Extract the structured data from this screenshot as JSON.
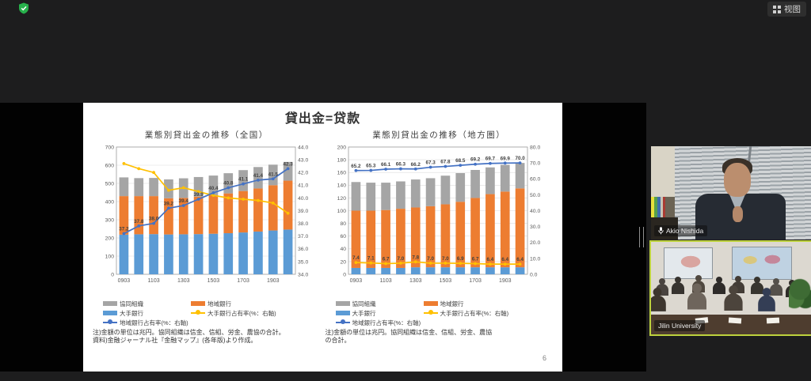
{
  "app": {
    "topbar": {
      "view_label": "视图"
    },
    "icons": {
      "security": "shield-check-icon",
      "view": "grid-icon",
      "mic": "microphone-icon",
      "resize": "panel-resize-handle"
    },
    "colors": {
      "active_speaker_border": "#bdd23d",
      "shield_green": "#27b04b",
      "share_background": "#000000",
      "slide_background": "#ffffff"
    }
  },
  "slide": {
    "title": "貸出金=贷款",
    "page_number": "6"
  },
  "participants": [
    {
      "name": "Akio Nishida"
    },
    {
      "name": "Jilin University"
    }
  ],
  "chart_data": [
    {
      "type": "bar",
      "subtype": "stacked-bars-with-share-lines",
      "title": "業態別貸出金の推移（全国）",
      "categories": [
        "0903",
        "1003",
        "1103",
        "1203",
        "1303",
        "1403",
        "1503",
        "1603",
        "1703",
        "1803",
        "1903",
        "2003"
      ],
      "x_tick_labels_shown": [
        "0903",
        "1103",
        "1303",
        "1503",
        "1703",
        "1903"
      ],
      "left_axis": {
        "min": 0,
        "max": 700,
        "step": 100
      },
      "right_axis": {
        "min": 34,
        "max": 44,
        "step": 1
      },
      "bar_series": [
        {
          "name": "大手銀行",
          "color": "#5b9bd5",
          "values": [
            218,
            220,
            221,
            219,
            220,
            221,
            223,
            226,
            230,
            235,
            241,
            246
          ]
        },
        {
          "name": "地域銀行",
          "color": "#ed7d31",
          "values": [
            212,
            210,
            209,
            199,
            200,
            206,
            212,
            219,
            228,
            237,
            249,
            269
          ]
        },
        {
          "name": "協同組織",
          "color": "#a5a5a5",
          "values": [
            103,
            99,
            100,
            104,
            108,
            108,
            108,
            111,
            115,
            118,
            113,
            103
          ]
        }
      ],
      "line_series": [
        {
          "name": "大手銀行占有率(%：右軸)",
          "color": "#ffc000",
          "axis": "right",
          "values": [
            42.7,
            42.3,
            42.0,
            40.6,
            40.8,
            40.5,
            40.2,
            40.0,
            39.9,
            39.8,
            39.6,
            38.8
          ]
        },
        {
          "name": "地域銀行占有率(%：右軸)",
          "color": "#4472c4",
          "axis": "right",
          "values": [
            37.2,
            37.8,
            38.0,
            39.2,
            39.4,
            39.9,
            40.4,
            40.8,
            41.1,
            41.4,
            41.5,
            42.3
          ],
          "point_labels": [
            "37.2",
            "37.8",
            "38.0",
            "39.2",
            "39.4",
            "39.9",
            "40.4",
            "40.8",
            "41.1",
            "41.4",
            "41.5",
            "42.3"
          ]
        }
      ],
      "legend_items": [
        {
          "label": "協同組織",
          "swatch": "bar",
          "color": "#a5a5a5"
        },
        {
          "label": "地域銀行",
          "swatch": "bar",
          "color": "#ed7d31"
        },
        {
          "label": "大手銀行",
          "swatch": "bar",
          "color": "#5b9bd5"
        },
        {
          "label": "大手銀行占有率(%：右軸)",
          "swatch": "line",
          "color": "#ffc000"
        },
        {
          "label": "地域銀行占有率(%：右軸)",
          "swatch": "line",
          "color": "#4472c4"
        }
      ],
      "note": "注)金額の単位は兆円。協同組織は信金、信組、労金、農協の合計。\n資料)金融ジャーナル社『金融マップ』(各年版)より作成。"
    },
    {
      "type": "bar",
      "subtype": "stacked-bars-with-share-lines",
      "title": "業態別貸出金の推移（地方圏）",
      "categories": [
        "0903",
        "1003",
        "1103",
        "1203",
        "1303",
        "1403",
        "1503",
        "1603",
        "1703",
        "1803",
        "1903",
        "2003"
      ],
      "x_tick_labels_shown": [
        "0903",
        "1103",
        "1303",
        "1503",
        "1703",
        "1903"
      ],
      "left_axis": {
        "min": 0,
        "max": 200,
        "step": 20
      },
      "right_axis": {
        "min": 0,
        "max": 80,
        "step": 10
      },
      "bar_series": [
        {
          "name": "大手銀行",
          "color": "#5b9bd5",
          "values": [
            10,
            10,
            10,
            10,
            11,
            11,
            11,
            11,
            11,
            11,
            11,
            11
          ]
        },
        {
          "name": "地域銀行",
          "color": "#ed7d31",
          "values": [
            90,
            90,
            91,
            93,
            94,
            96,
            99,
            103,
            109,
            115,
            119,
            124
          ]
        },
        {
          "name": "協同組織",
          "color": "#a5a5a5",
          "values": [
            45,
            44,
            43,
            43,
            44,
            44,
            45,
            45,
            44,
            42,
            42,
            40
          ]
        }
      ],
      "line_series": [
        {
          "name": "大手銀行占有率(%：右軸)",
          "color": "#ffc000",
          "axis": "right",
          "values": [
            7.4,
            7.1,
            6.7,
            7.0,
            7.8,
            7.0,
            7.0,
            6.9,
            6.7,
            6.4,
            6.4,
            6.4
          ],
          "point_labels": [
            "7.4",
            "7.1",
            "6.7",
            "7.0",
            "7.8",
            "7.0",
            "7.0",
            "6.9",
            "6.7",
            "6.4",
            "6.4",
            "6.4"
          ]
        },
        {
          "name": "地域銀行占有率(%：右軸)",
          "color": "#4472c4",
          "axis": "right",
          "values": [
            65.2,
            65.3,
            66.1,
            66.3,
            66.2,
            67.3,
            67.8,
            68.5,
            69.2,
            69.7,
            69.9,
            70.0
          ],
          "point_labels": [
            "65.2",
            "65.3",
            "66.1",
            "66.3",
            "66.2",
            "67.3",
            "67.8",
            "68.5",
            "69.2",
            "69.7",
            "69.9",
            "70.0"
          ]
        }
      ],
      "legend_items": [
        {
          "label": "協同組織",
          "swatch": "bar",
          "color": "#a5a5a5"
        },
        {
          "label": "地域銀行",
          "swatch": "bar",
          "color": "#ed7d31"
        },
        {
          "label": "大手銀行",
          "swatch": "bar",
          "color": "#5b9bd5"
        },
        {
          "label": "大手銀行占有率(%：右軸)",
          "swatch": "line",
          "color": "#ffc000"
        },
        {
          "label": "地域銀行占有率(%：右軸)",
          "swatch": "line",
          "color": "#4472c4"
        }
      ],
      "note": "注)金額の単位は兆円。協同組織は信金、信組、労金、農協\nの合計。"
    }
  ]
}
